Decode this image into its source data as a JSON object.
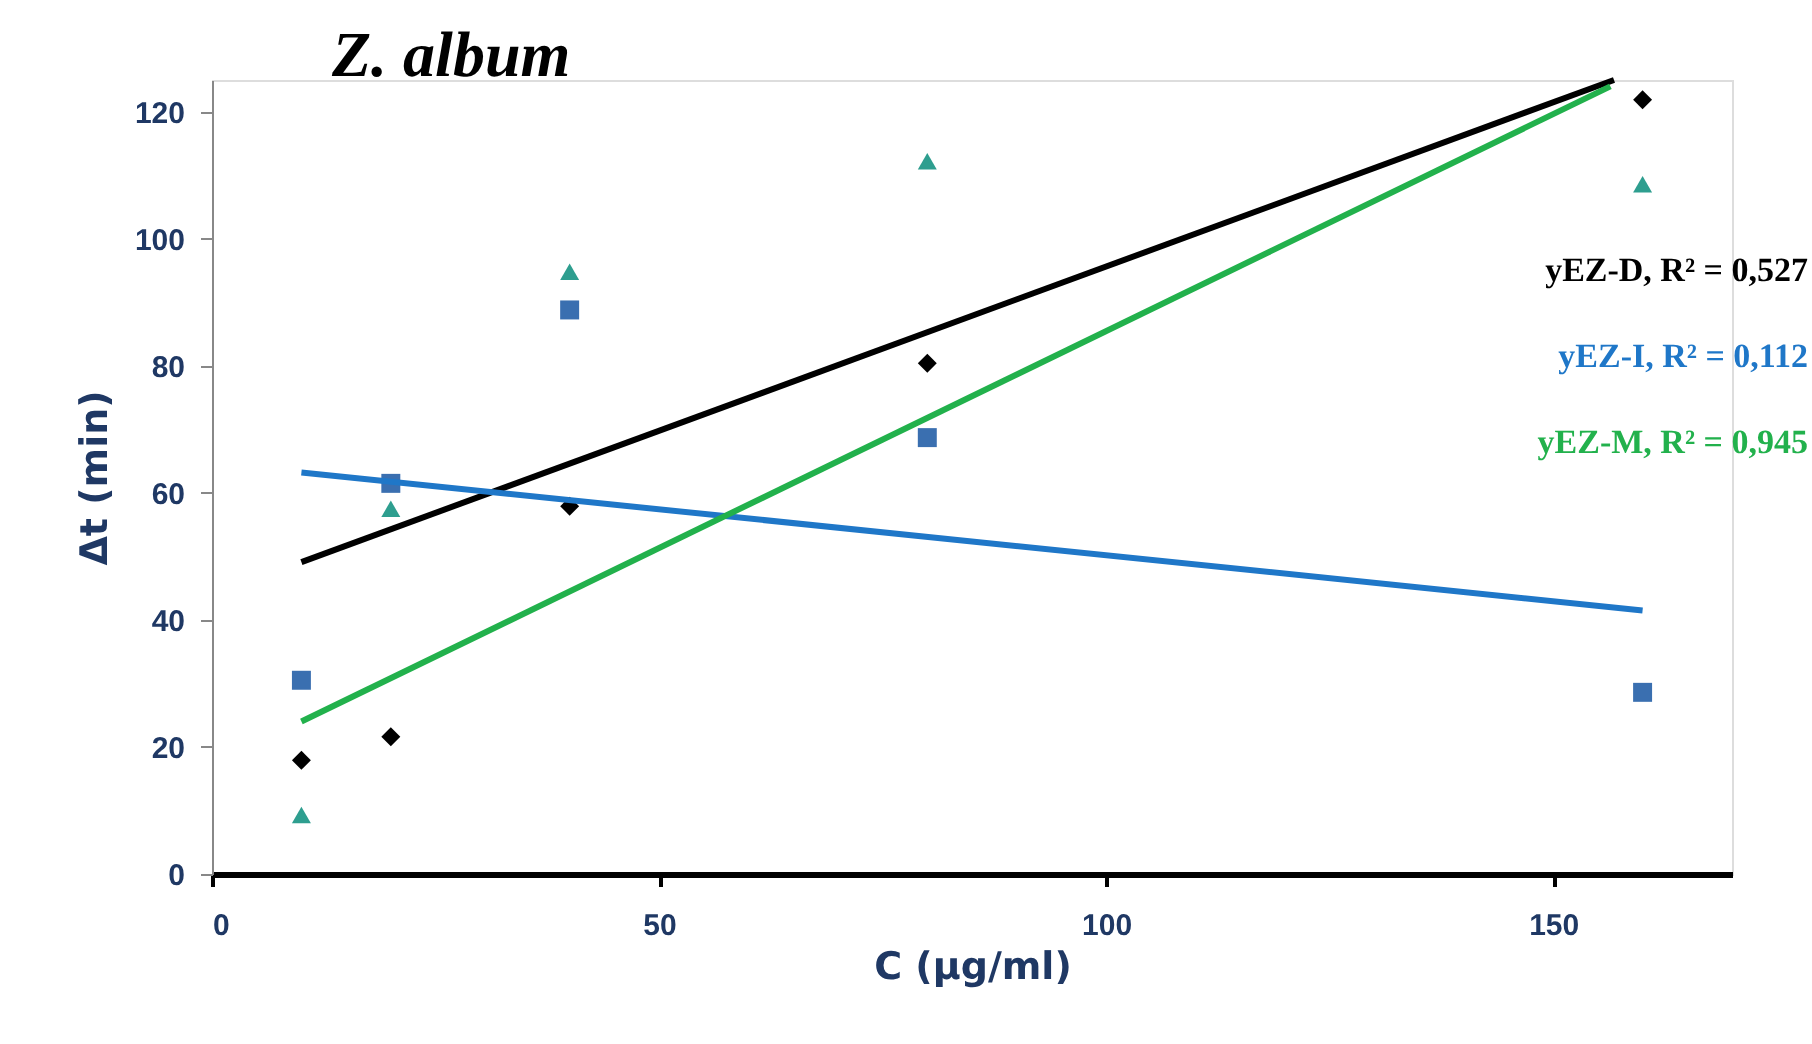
{
  "chart_data": {
    "type": "scatter",
    "title": "Z. album",
    "xlabel": "C (μg/ml)",
    "ylabel": "Δt (min)",
    "xlim": [
      0,
      170
    ],
    "xticks": [
      0,
      50,
      100,
      150
    ],
    "ylim": [
      0,
      125
    ],
    "yticks": [
      0,
      20,
      40,
      60,
      80,
      100,
      120
    ],
    "grid": false,
    "series": [
      {
        "marker": "diamond",
        "color": "#000000",
        "x": [
          10,
          20,
          40,
          80,
          160
        ],
        "values": [
          17.9,
          21.6,
          57.9,
          80.4,
          121.9
        ]
      },
      {
        "marker": "square",
        "color": "#3a6fb0",
        "x": [
          10,
          20,
          40,
          80,
          160
        ],
        "values": [
          30.5,
          61.5,
          88.8,
          68.7,
          28.6
        ]
      },
      {
        "marker": "triangle",
        "color": "#2e9e8f",
        "x": [
          10,
          20,
          40,
          80,
          160
        ],
        "values": [
          9.3,
          57.5,
          94.8,
          112.2,
          108.6
        ]
      },
      {
        "type": "line",
        "name": "yEZ-D, R² = 0,527",
        "color": "#000000",
        "x": [
          10,
          156.8
        ],
        "values": [
          49.1,
          125
        ]
      },
      {
        "type": "line",
        "name": "yEZ-I, R² = 0,112",
        "color": "#1f77c8",
        "x": [
          10,
          160
        ],
        "values": [
          63.2,
          41.5
        ]
      },
      {
        "type": "line",
        "name": "yEZ-M, R² = 0,945",
        "color": "#22b14c",
        "x": [
          10,
          156.4
        ],
        "values": [
          24.0,
          124.0
        ]
      }
    ]
  }
}
